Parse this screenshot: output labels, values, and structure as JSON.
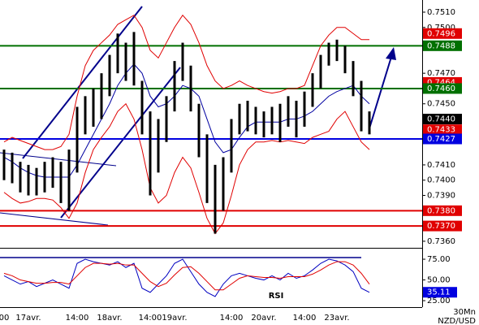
{
  "chart_data": [
    {
      "type": "ohlc",
      "symbol": "NZD/USD",
      "timeframe": "30Mn",
      "bar_color": "#000000",
      "categories": [
        "00",
        null,
        null,
        "17avr.",
        null,
        null,
        null,
        null,
        null,
        "14:00",
        null,
        null,
        null,
        "18avr.",
        null,
        null,
        null,
        null,
        "14:00",
        null,
        null,
        "19avr.",
        null,
        null,
        null,
        null,
        null,
        null,
        "14:00",
        null,
        null,
        null,
        "20avr.",
        null,
        null,
        null,
        null,
        "14:00",
        null,
        null,
        null,
        "23avr.",
        null,
        null,
        null,
        null
      ],
      "high": [
        0.742,
        0.7418,
        0.7412,
        0.741,
        0.7408,
        0.7412,
        0.7415,
        0.7412,
        0.742,
        0.7448,
        0.7455,
        0.746,
        0.747,
        0.7482,
        0.7496,
        0.749,
        0.7497,
        0.7465,
        0.7445,
        0.744,
        0.7455,
        0.7478,
        0.749,
        0.7475,
        0.745,
        0.743,
        0.741,
        0.7415,
        0.744,
        0.745,
        0.7452,
        0.7448,
        0.7445,
        0.7448,
        0.745,
        0.7455,
        0.7452,
        0.7458,
        0.747,
        0.7482,
        0.749,
        0.7492,
        0.7488,
        0.7478,
        0.7465,
        0.7445
      ],
      "low": [
        0.74,
        0.7398,
        0.7392,
        0.739,
        0.739,
        0.7392,
        0.7395,
        0.7385,
        0.738,
        0.7405,
        0.743,
        0.7435,
        0.744,
        0.7455,
        0.747,
        0.7465,
        0.7462,
        0.743,
        0.739,
        0.7405,
        0.7425,
        0.7445,
        0.7465,
        0.7445,
        0.7415,
        0.7385,
        0.7365,
        0.738,
        0.7405,
        0.743,
        0.7432,
        0.743,
        0.7428,
        0.743,
        0.7425,
        0.7435,
        0.7428,
        0.7435,
        0.7448,
        0.746,
        0.7475,
        0.7478,
        0.747,
        0.7455,
        0.7432,
        0.743
      ],
      "overlays": [
        {
          "color": "#e00000",
          "values": [
            0.7425,
            0.7428,
            0.7426,
            0.7424,
            0.7422,
            0.742,
            0.742,
            0.7422,
            0.743,
            0.7455,
            0.7475,
            0.7485,
            0.749,
            0.7495,
            0.7502,
            0.7505,
            0.7508,
            0.75,
            0.7485,
            0.748,
            0.749,
            0.75,
            0.7508,
            0.7502,
            0.749,
            0.7475,
            0.7465,
            0.746,
            0.7462,
            0.7465,
            0.7462,
            0.746,
            0.7458,
            0.7457,
            0.7458,
            0.746,
            0.746,
            0.7462,
            0.7475,
            0.7488,
            0.7495,
            0.75,
            0.75,
            0.7496,
            0.7492,
            0.7492
          ]
        },
        {
          "color": "#e00000",
          "values": [
            0.7392,
            0.7388,
            0.7385,
            0.7386,
            0.7388,
            0.7388,
            0.7387,
            0.7382,
            0.7375,
            0.7385,
            0.7405,
            0.742,
            0.7428,
            0.7435,
            0.7445,
            0.745,
            0.744,
            0.742,
            0.7395,
            0.7385,
            0.739,
            0.7405,
            0.7415,
            0.7408,
            0.7392,
            0.7375,
            0.7365,
            0.7372,
            0.739,
            0.741,
            0.742,
            0.7425,
            0.7425,
            0.7426,
            0.7425,
            0.7426,
            0.7425,
            0.7424,
            0.7428,
            0.743,
            0.7432,
            0.744,
            0.7445,
            0.7435,
            0.7425,
            0.742
          ]
        },
        {
          "color": "#0000a0",
          "values": [
            0.7415,
            0.7412,
            0.7408,
            0.7405,
            0.7403,
            0.7402,
            0.7402,
            0.7402,
            0.7402,
            0.741,
            0.742,
            0.743,
            0.744,
            0.745,
            0.7462,
            0.747,
            0.7476,
            0.747,
            0.7455,
            0.7448,
            0.745,
            0.7455,
            0.7462,
            0.746,
            0.7455,
            0.744,
            0.7425,
            0.7418,
            0.742,
            0.7428,
            0.7435,
            0.7438,
            0.7438,
            0.7438,
            0.7438,
            0.744,
            0.744,
            0.7442,
            0.7445,
            0.745,
            0.7455,
            0.7458,
            0.746,
            0.7462,
            0.7455,
            0.745
          ]
        }
      ],
      "levels": [
        {
          "value": 0.7496,
          "label": "0.7496",
          "color": "#e00000",
          "line": false
        },
        {
          "value": 0.7488,
          "label": "0.7488",
          "color": "#007000",
          "line": true
        },
        {
          "value": 0.7464,
          "label": "0.7464",
          "color": "#e00000",
          "line": false
        },
        {
          "value": 0.746,
          "label": "0.7460",
          "color": "#007000",
          "line": true
        },
        {
          "value": 0.744,
          "label": "0.7440",
          "color": "#000000",
          "line": false
        },
        {
          "value": 0.7433,
          "label": "0.7433",
          "color": "#e00000",
          "line": false
        },
        {
          "value": 0.7427,
          "label": "0.7427",
          "color": "#0000e0",
          "line": true
        },
        {
          "value": 0.738,
          "label": "0.7380",
          "color": "#e00000",
          "line": true
        },
        {
          "value": 0.737,
          "label": "0.7370",
          "color": "#e00000",
          "line": true
        }
      ],
      "ylim": [
        0.73557,
        0.75169
      ],
      "yticks": [
        {
          "value": 0.751,
          "label": "0.7510"
        },
        {
          "value": 0.75,
          "label": "0.7500"
        },
        {
          "value": 0.747,
          "label": "0.7470"
        },
        {
          "value": 0.745,
          "label": "0.7450"
        },
        {
          "value": 0.741,
          "label": "0.7410"
        },
        {
          "value": 0.74,
          "label": "0.7400"
        },
        {
          "value": 0.739,
          "label": "0.7390"
        },
        {
          "value": 0.736,
          "label": "0.7360"
        }
      ]
    },
    {
      "type": "line",
      "title": "RSI",
      "series": [
        {
          "color": "#0000c0",
          "values": [
            55,
            50,
            45,
            48,
            42,
            46,
            50,
            45,
            40,
            70,
            75,
            72,
            70,
            68,
            72,
            65,
            70,
            40,
            35,
            45,
            55,
            70,
            75,
            60,
            45,
            35,
            30,
            45,
            55,
            58,
            55,
            52,
            50,
            55,
            50,
            58,
            52,
            55,
            62,
            70,
            75,
            73,
            68,
            60,
            40,
            35
          ]
        },
        {
          "color": "#e00000",
          "values": [
            58,
            55,
            50,
            48,
            46,
            46,
            47,
            47,
            45,
            55,
            65,
            70,
            70,
            69,
            70,
            68,
            68,
            58,
            48,
            42,
            46,
            56,
            65,
            66,
            58,
            48,
            38,
            38,
            45,
            52,
            55,
            54,
            53,
            53,
            52,
            54,
            54,
            54,
            57,
            62,
            68,
            72,
            72,
            68,
            58,
            45
          ]
        }
      ],
      "last_value": 35.11,
      "last_color": "#0000e0",
      "ylim": [
        17.2,
        86.8
      ],
      "yticks": [
        {
          "value": 75,
          "label": "75.00"
        },
        {
          "value": 50,
          "label": "50.00"
        },
        {
          "value": 25,
          "label": "25.00"
        }
      ]
    }
  ]
}
